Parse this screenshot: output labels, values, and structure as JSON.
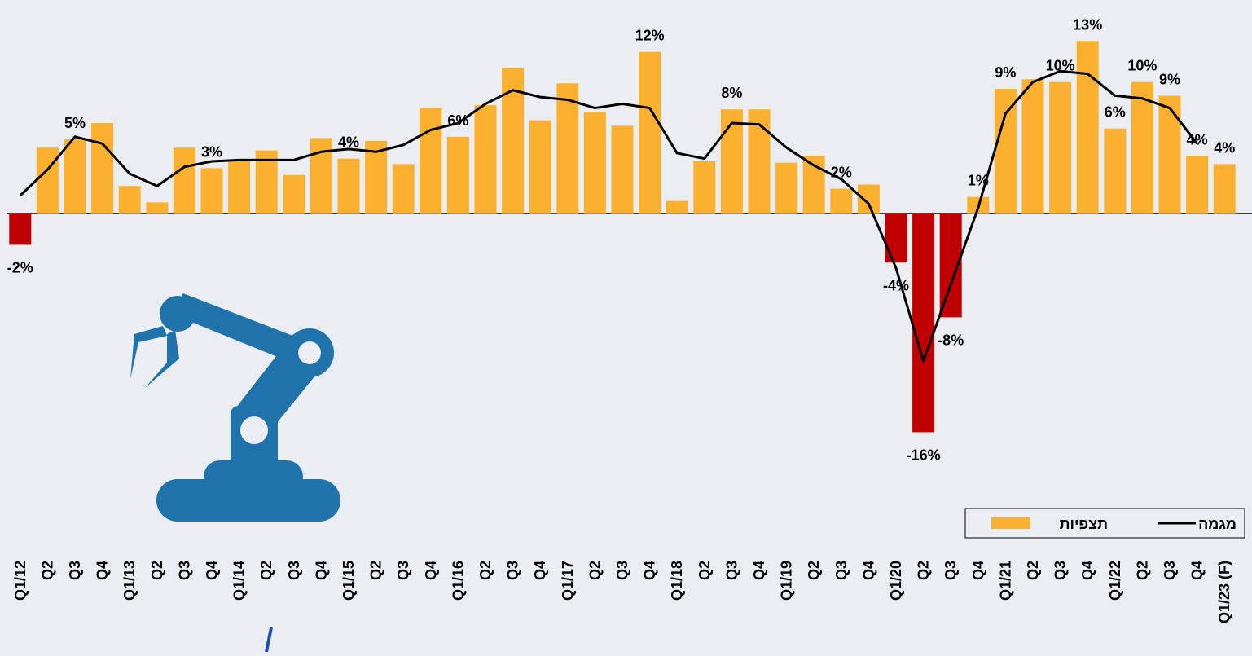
{
  "chart_data": {
    "type": "bar",
    "categories": [
      "Q1/12",
      "Q2",
      "Q3",
      "Q4",
      "Q1/13",
      "Q2",
      "Q3",
      "Q4",
      "Q1/14",
      "Q2",
      "Q3",
      "Q4",
      "Q1/15",
      "Q2",
      "Q3",
      "Q4",
      "Q1/16",
      "Q2",
      "Q3",
      "Q4",
      "Q1/17",
      "Q2",
      "Q3",
      "Q4",
      "Q1/18",
      "Q2",
      "Q3",
      "Q4",
      "Q1/19",
      "Q2",
      "Q3",
      "Q4",
      "Q1/20",
      "Q2",
      "Q3",
      "Q4",
      "Q1/21",
      "Q2",
      "Q3",
      "Q4",
      "Q1/22",
      "Q2",
      "Q3",
      "Q4",
      "Q1/23 (F)"
    ],
    "series": [
      {
        "name": "תצפיות",
        "color": "#fbb12f",
        "negative_color": "#c00000",
        "values": [
          -2.3,
          4.8,
          5.4,
          6.6,
          2.0,
          0.8,
          4.8,
          3.3,
          3.8,
          4.6,
          2.8,
          5.5,
          4.0,
          5.3,
          3.6,
          7.7,
          5.6,
          7.9,
          10.6,
          6.8,
          9.5,
          7.4,
          6.4,
          11.8,
          0.9,
          3.8,
          7.6,
          7.6,
          3.7,
          4.2,
          1.8,
          2.1,
          -3.6,
          -16,
          -7.6,
          1.2,
          9.1,
          9.8,
          9.6,
          12.6,
          6.2,
          9.6,
          8.6,
          4.2,
          3.6
        ],
        "value_labels": [
          "-2%",
          null,
          "5%",
          null,
          null,
          null,
          null,
          "3%",
          null,
          null,
          null,
          null,
          "4%",
          null,
          null,
          null,
          "6%",
          null,
          null,
          null,
          null,
          null,
          null,
          "12%",
          null,
          null,
          "8%",
          null,
          null,
          null,
          "2%",
          null,
          "-4%",
          "-16%",
          "-8%",
          "1%",
          "9%",
          null,
          "10%",
          "13%",
          "6%",
          "10%",
          "9%",
          "4%",
          "4%"
        ]
      },
      {
        "name": "מגמה",
        "color": "#000000",
        "type": "line",
        "values": [
          1.3,
          3.2,
          5.6,
          5.1,
          2.9,
          2.0,
          3.4,
          3.8,
          3.9,
          3.9,
          3.9,
          4.5,
          4.7,
          4.5,
          5.0,
          6.1,
          6.6,
          8.0,
          9.0,
          8.5,
          8.3,
          7.7,
          8.0,
          7.7,
          4.4,
          4.0,
          6.6,
          6.5,
          4.8,
          3.5,
          2.5,
          0.7,
          -4.0,
          -10.8,
          -5.2,
          0.4,
          7.3,
          9.6,
          10.4,
          10.2,
          8.6,
          8.4,
          7.7,
          5.1,
          null
        ]
      }
    ],
    "ylim": [
      -18,
      15
    ]
  }
}
